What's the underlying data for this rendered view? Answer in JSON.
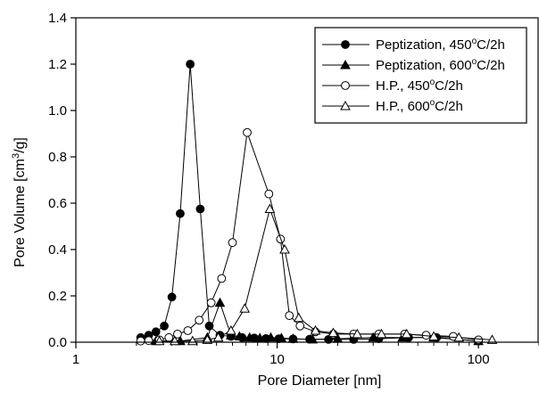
{
  "chart_data": {
    "type": "line",
    "title": "",
    "xlabel": "Pore Diameter [nm]",
    "ylabel_main": "Pore Volume [cm",
    "ylabel_sup": "3",
    "ylabel_tail": "/g]",
    "x_scale": "log",
    "xlim": [
      1,
      200
    ],
    "ylim": [
      0,
      1.4
    ],
    "x_ticks": [
      1,
      10,
      100
    ],
    "x_tick_labels": [
      "1",
      "10",
      "100"
    ],
    "y_ticks": [
      0,
      0.2,
      0.4,
      0.6,
      0.8,
      1.0,
      1.2,
      1.4
    ],
    "y_tick_labels": [
      "0.0",
      "0.2",
      "0.4",
      "0.6",
      "0.8",
      "1.0",
      "1.2",
      "1.4"
    ],
    "grid": false,
    "legend_position": "top-right",
    "series": [
      {
        "name_main": "Peptization, 450",
        "name_sup": "o",
        "name_tail": "C/2h",
        "marker": "circle",
        "filled": true,
        "x": [
          2.1,
          2.3,
          2.5,
          2.75,
          3.0,
          3.3,
          3.7,
          4.15,
          4.6,
          5.2,
          5.9,
          6.7,
          7.7,
          8.8,
          10.2,
          12.0,
          14.5,
          18.0,
          24.0,
          32.0,
          45.0,
          62.0,
          100.0
        ],
        "y": [
          0.02,
          0.03,
          0.045,
          0.07,
          0.195,
          0.555,
          1.2,
          0.575,
          0.07,
          0.03,
          0.025,
          0.02,
          0.018,
          0.016,
          0.015,
          0.014,
          0.013,
          0.012,
          0.012,
          0.015,
          0.02,
          0.02,
          0.005
        ]
      },
      {
        "name_main": "Peptization, 600",
        "name_sup": "o",
        "name_tail": "C/2h",
        "marker": "triangle",
        "filled": true,
        "x": [
          2.5,
          3.3,
          4.5,
          5.2,
          5.9,
          6.5,
          7.3,
          8.2,
          9.3,
          10.5,
          12.0,
          15.0,
          20.0,
          30.0,
          42.0,
          60.0,
          100.0
        ],
        "y": [
          0.005,
          0.005,
          0.02,
          0.17,
          0.03,
          0.025,
          0.02,
          0.018,
          0.02,
          0.018,
          0.015,
          0.012,
          0.015,
          0.02,
          0.02,
          0.02,
          0.005
        ]
      },
      {
        "name_main": "H.P., 450",
        "name_sup": "o",
        "name_tail": "C/2h",
        "marker": "circle",
        "filled": false,
        "x": [
          2.1,
          2.3,
          2.6,
          2.9,
          3.2,
          3.6,
          4.1,
          4.7,
          5.3,
          6.0,
          7.1,
          9.1,
          10.4,
          11.5,
          13.0,
          15.5,
          19.0,
          24.0,
          32.0,
          43.0,
          55.0,
          75.0,
          100.0
        ],
        "y": [
          0.005,
          0.007,
          0.01,
          0.02,
          0.035,
          0.05,
          0.095,
          0.17,
          0.275,
          0.43,
          0.905,
          0.64,
          0.445,
          0.115,
          0.07,
          0.045,
          0.035,
          0.035,
          0.035,
          0.035,
          0.03,
          0.025,
          0.01
        ]
      },
      {
        "name_main": "H.P., 600",
        "name_sup": "o",
        "name_tail": "C/2h",
        "marker": "triangle",
        "filled": false,
        "x": [
          2.6,
          3.1,
          3.8,
          4.5,
          5.1,
          5.9,
          6.9,
          9.2,
          10.9,
          12.8,
          15.5,
          19.0,
          25.0,
          33.0,
          44.0,
          60.0,
          80.0,
          117.0
        ],
        "y": [
          0.005,
          0.005,
          0.005,
          0.01,
          0.02,
          0.05,
          0.145,
          0.575,
          0.4,
          0.105,
          0.05,
          0.04,
          0.035,
          0.035,
          0.035,
          0.025,
          0.02,
          0.01
        ]
      }
    ]
  }
}
